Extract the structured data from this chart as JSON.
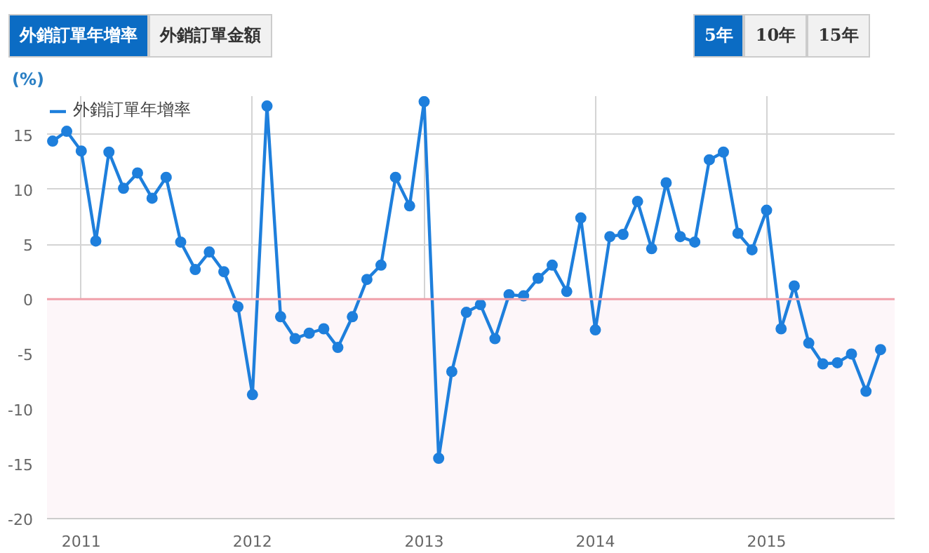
{
  "chart_data": {
    "type": "line",
    "ylabel": "(%)",
    "annotations": [
      "外銷訂單年增率",
      "外銷訂單金額",
      "5年",
      "10年",
      "15年"
    ],
    "x": [
      "2010-11",
      "2010-12",
      "2011-01",
      "2011-02",
      "2011-03",
      "2011-04",
      "2011-05",
      "2011-06",
      "2011-07",
      "2011-08",
      "2011-09",
      "2011-10",
      "2011-11",
      "2011-12",
      "2012-01",
      "2012-02",
      "2012-03",
      "2012-04",
      "2012-05",
      "2012-06",
      "2012-07",
      "2012-08",
      "2012-09",
      "2012-10",
      "2012-11",
      "2012-12",
      "2013-01",
      "2013-02",
      "2013-03",
      "2013-04",
      "2013-05",
      "2013-06",
      "2013-07",
      "2013-08",
      "2013-09",
      "2013-10",
      "2013-11",
      "2013-12",
      "2014-01",
      "2014-02",
      "2014-03",
      "2014-04",
      "2014-05",
      "2014-06",
      "2014-07",
      "2014-08",
      "2014-09",
      "2014-10",
      "2014-11",
      "2014-12",
      "2015-01",
      "2015-02",
      "2015-03",
      "2015-04",
      "2015-05",
      "2015-06",
      "2015-07",
      "2015-08",
      "2015-09"
    ],
    "series": [
      {
        "name": "外銷訂單年增率",
        "color": "#1e7fdc",
        "values": [
          14.4,
          15.3,
          13.5,
          5.3,
          13.4,
          10.1,
          11.5,
          9.2,
          11.1,
          5.2,
          2.7,
          4.3,
          2.5,
          -0.7,
          -8.7,
          17.6,
          -1.6,
          -3.6,
          -3.1,
          -2.7,
          -4.4,
          -1.6,
          1.8,
          3.1,
          11.1,
          8.5,
          18.0,
          -14.5,
          -6.6,
          -1.2,
          -0.5,
          -3.6,
          0.4,
          0.3,
          1.9,
          3.1,
          0.7,
          7.4,
          -2.8,
          5.7,
          5.9,
          8.9,
          4.6,
          10.6,
          5.7,
          5.2,
          12.7,
          13.4,
          6.0,
          4.5,
          8.1,
          -2.7,
          1.2,
          -4.0,
          -5.9,
          -5.8,
          -5.0,
          -8.4,
          -4.6
        ]
      }
    ],
    "xlim": [
      "2010-10-20",
      "2015-10-01"
    ],
    "xticks": [
      "2011",
      "2012",
      "2013",
      "2014",
      "2015"
    ],
    "ylim": [
      -20,
      18.5
    ],
    "yticks": [
      -20,
      -15,
      -10,
      -5,
      0,
      5,
      10,
      15
    ],
    "ref_lines": [
      {
        "axis": "y",
        "value": 0,
        "color": "#f0a0aa"
      }
    ],
    "bands": [
      {
        "axis": "y",
        "from": -20,
        "to": 0,
        "color": "#fdf6f9"
      }
    ],
    "grid": true,
    "legend": "top left",
    "marker": "circle",
    "line_style": "solid"
  }
}
